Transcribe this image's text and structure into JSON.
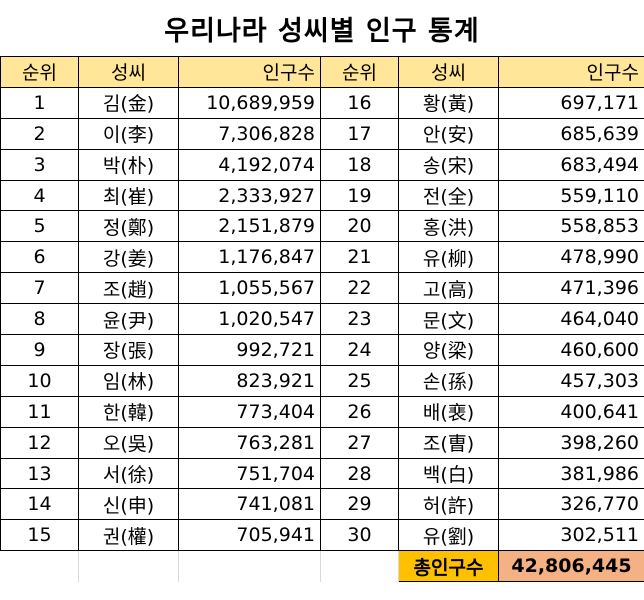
{
  "title": "우리나라 성씨별 인구 통계",
  "headers": {
    "rank": "순위",
    "surname": "성씨",
    "population": "인구수"
  },
  "left": [
    {
      "rank": "1",
      "name": "김(金)",
      "pop": "10,689,959"
    },
    {
      "rank": "2",
      "name": "이(李)",
      "pop": "7,306,828"
    },
    {
      "rank": "3",
      "name": "박(朴)",
      "pop": "4,192,074"
    },
    {
      "rank": "4",
      "name": "최(崔)",
      "pop": "2,333,927"
    },
    {
      "rank": "5",
      "name": "정(鄭)",
      "pop": "2,151,879"
    },
    {
      "rank": "6",
      "name": "강(姜)",
      "pop": "1,176,847"
    },
    {
      "rank": "7",
      "name": "조(趙)",
      "pop": "1,055,567"
    },
    {
      "rank": "8",
      "name": "윤(尹)",
      "pop": "1,020,547"
    },
    {
      "rank": "9",
      "name": "장(張)",
      "pop": "992,721"
    },
    {
      "rank": "10",
      "name": "임(林)",
      "pop": "823,921"
    },
    {
      "rank": "11",
      "name": "한(韓)",
      "pop": "773,404"
    },
    {
      "rank": "12",
      "name": "오(吳)",
      "pop": "763,281"
    },
    {
      "rank": "13",
      "name": "서(徐)",
      "pop": "751,704"
    },
    {
      "rank": "14",
      "name": "신(申)",
      "pop": "741,081"
    },
    {
      "rank": "15",
      "name": "권(權)",
      "pop": "705,941"
    }
  ],
  "right": [
    {
      "rank": "16",
      "name": "황(黃)",
      "pop": "697,171"
    },
    {
      "rank": "17",
      "name": "안(安)",
      "pop": "685,639"
    },
    {
      "rank": "18",
      "name": "송(宋)",
      "pop": "683,494"
    },
    {
      "rank": "19",
      "name": "전(全)",
      "pop": "559,110"
    },
    {
      "rank": "20",
      "name": "홍(洪)",
      "pop": "558,853"
    },
    {
      "rank": "21",
      "name": "유(柳)",
      "pop": "478,990"
    },
    {
      "rank": "22",
      "name": "고(高)",
      "pop": "471,396"
    },
    {
      "rank": "23",
      "name": "문(文)",
      "pop": "464,040"
    },
    {
      "rank": "24",
      "name": "양(梁)",
      "pop": "460,600"
    },
    {
      "rank": "25",
      "name": "손(孫)",
      "pop": "457,303"
    },
    {
      "rank": "26",
      "name": "배(裵)",
      "pop": "400,641"
    },
    {
      "rank": "27",
      "name": "조(曺)",
      "pop": "398,260"
    },
    {
      "rank": "28",
      "name": "백(白)",
      "pop": "381,986"
    },
    {
      "rank": "29",
      "name": "허(許)",
      "pop": "326,770"
    },
    {
      "rank": "30",
      "name": "유(劉)",
      "pop": "302,511"
    }
  ],
  "total": {
    "label": "총인구수",
    "value": "42,806,445"
  }
}
